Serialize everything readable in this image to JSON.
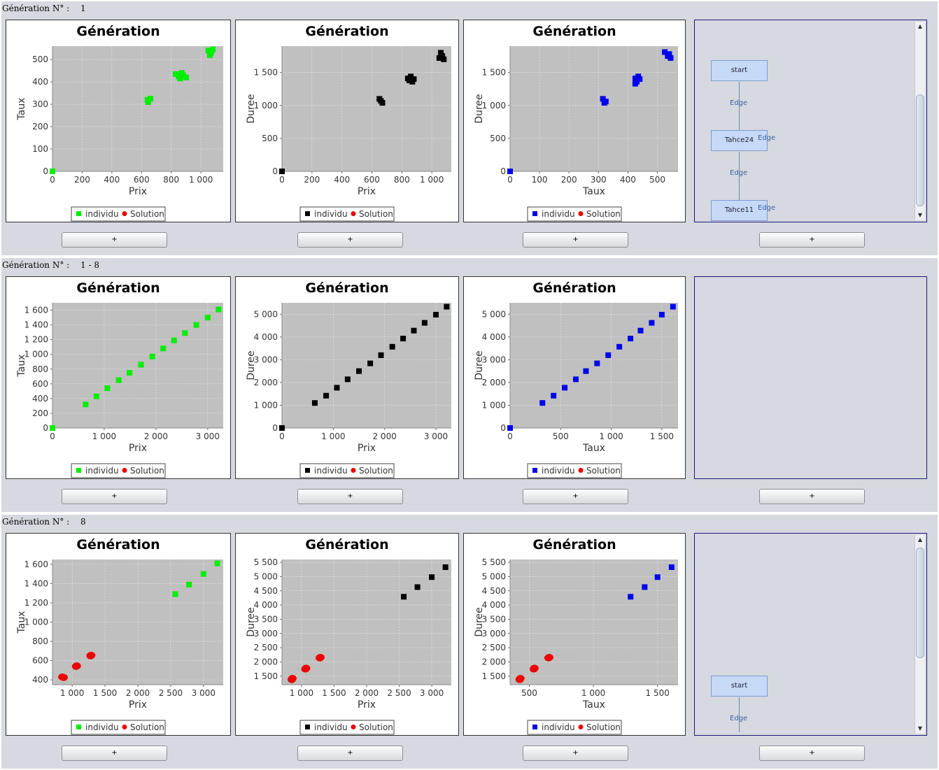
{
  "rows": [
    {
      "label": "Génération N° :",
      "value": "1",
      "charts": [
        {
          "title": "Génération",
          "xlabel": "Prix",
          "ylabel": "Taux",
          "color": "#00ee00",
          "xticks": [
            "0",
            "200",
            "400",
            "600",
            "800",
            "1 000"
          ],
          "yticks": [
            "0",
            "100",
            "200",
            "300",
            "400",
            "500"
          ],
          "legend": [
            "individu",
            "Solution"
          ]
        },
        {
          "title": "Génération",
          "xlabel": "Prix",
          "ylabel": "Duree",
          "color": "#000000",
          "xticks": [
            "0",
            "200",
            "400",
            "600",
            "800",
            "1 000"
          ],
          "yticks": [
            "0",
            "500",
            "1 000",
            "1 500"
          ],
          "legend": [
            "individu",
            "Solution"
          ]
        },
        {
          "title": "Génération",
          "xlabel": "Taux",
          "ylabel": "Duree",
          "color": "#0000ee",
          "xticks": [
            "0",
            "100",
            "200",
            "300",
            "400",
            "500"
          ],
          "yticks": [
            "0",
            "500",
            "1 000",
            "1 500"
          ],
          "legend": [
            "individu",
            "Solution"
          ]
        }
      ],
      "graph": {
        "nodes": [
          "start",
          "Tahce24",
          "Tahce11"
        ],
        "edges": [
          "Edge",
          "Edge",
          "Edge",
          "Edge"
        ]
      },
      "buttons": [
        "+",
        "+",
        "+",
        "+"
      ]
    },
    {
      "label": "Génération N° :",
      "value": "1 - 8",
      "charts": [
        {
          "title": "Génération",
          "xlabel": "Prix",
          "ylabel": "Taux",
          "color": "#00ee00",
          "xticks": [
            "0",
            "1 000",
            "2 000",
            "3 000"
          ],
          "yticks": [
            "0",
            "200",
            "400",
            "600",
            "800",
            "1 000",
            "1 200",
            "1 400",
            "1 600"
          ],
          "legend": [
            "individu",
            "Solution"
          ]
        },
        {
          "title": "Génération",
          "xlabel": "Prix",
          "ylabel": "Duree",
          "color": "#000000",
          "xticks": [
            "0",
            "1 000",
            "2 000",
            "3 000"
          ],
          "yticks": [
            "0",
            "1 000",
            "2 000",
            "3 000",
            "4 000",
            "5 000"
          ],
          "legend": [
            "individu",
            "Solution"
          ]
        },
        {
          "title": "Génération",
          "xlabel": "Taux",
          "ylabel": "Duree",
          "color": "#0000ee",
          "xticks": [
            "0",
            "500",
            "1 000",
            "1 500"
          ],
          "yticks": [
            "0",
            "1 000",
            "2 000",
            "3 000",
            "4 000",
            "5 000"
          ],
          "legend": [
            "individu",
            "Solution"
          ]
        }
      ],
      "buttons": [
        "+",
        "+",
        "+",
        "+"
      ]
    },
    {
      "label": "Génération N° :",
      "value": "8",
      "charts": [
        {
          "title": "Génération",
          "xlabel": "Prix",
          "ylabel": "Taux",
          "color": "#00ee00",
          "xticks": [
            "1 000",
            "1 500",
            "2 000",
            "2 500",
            "3 000"
          ],
          "yticks": [
            "400",
            "600",
            "800",
            "1 000",
            "1 200",
            "1 400",
            "1 600"
          ],
          "legend": [
            "individu",
            "Solution"
          ]
        },
        {
          "title": "Génération",
          "xlabel": "Prix",
          "ylabel": "Duree",
          "color": "#000000",
          "xticks": [
            "1 000",
            "1 500",
            "2 000",
            "2 500",
            "3 000"
          ],
          "yticks": [
            "1 500",
            "2 000",
            "2 500",
            "3 000",
            "3 500",
            "4 000",
            "4 500",
            "5 000",
            "5 500"
          ],
          "legend": [
            "individu",
            "Solution"
          ]
        },
        {
          "title": "Génération",
          "xlabel": "Taux",
          "ylabel": "Duree",
          "color": "#0000ee",
          "xticks": [
            "500",
            "1 000",
            "1 500"
          ],
          "yticks": [
            "1 500",
            "2 000",
            "2 500",
            "3 000",
            "3 500",
            "4 000",
            "4 500",
            "5 000",
            "5 500"
          ],
          "legend": [
            "individu",
            "Solution"
          ]
        }
      ],
      "graph": {
        "nodes": [
          "start"
        ],
        "edges": [
          "Edge"
        ]
      },
      "buttons": [
        "+",
        "+",
        "+",
        "+"
      ]
    }
  ],
  "chart_data": [
    {
      "type": "scatter",
      "row": 1,
      "title": "Génération",
      "xlabel": "Prix",
      "ylabel": "Taux",
      "xlim": [
        0,
        1150
      ],
      "ylim": [
        0,
        560
      ],
      "series": [
        {
          "name": "individu",
          "color": "#00ee00",
          "points": [
            [
              0,
              0
            ],
            [
              640,
              320
            ],
            [
              660,
              325
            ],
            [
              645,
              310
            ],
            [
              830,
              435
            ],
            [
              850,
              425
            ],
            [
              870,
              440
            ],
            [
              880,
              430
            ],
            [
              900,
              420
            ],
            [
              860,
              415
            ],
            [
              1050,
              540
            ],
            [
              1060,
              520
            ],
            [
              1070,
              535
            ],
            [
              1080,
              545
            ],
            [
              1065,
              530
            ]
          ]
        },
        {
          "name": "Solution",
          "color": "#ee0000",
          "points": []
        }
      ]
    },
    {
      "type": "scatter",
      "row": 1,
      "title": "Génération",
      "xlabel": "Prix",
      "ylabel": "Duree",
      "xlim": [
        0,
        1130
      ],
      "ylim": [
        0,
        1900
      ],
      "series": [
        {
          "name": "individu",
          "color": "#000000",
          "points": [
            [
              0,
              0
            ],
            [
              650,
              1100
            ],
            [
              660,
              1070
            ],
            [
              670,
              1040
            ],
            [
              840,
              1410
            ],
            [
              860,
              1440
            ],
            [
              880,
              1400
            ],
            [
              870,
              1360
            ],
            [
              850,
              1380
            ],
            [
              1060,
              1800
            ],
            [
              1050,
              1720
            ],
            [
              1080,
              1700
            ],
            [
              1070,
              1750
            ]
          ]
        },
        {
          "name": "Solution",
          "color": "#ee0000",
          "points": []
        }
      ]
    },
    {
      "type": "scatter",
      "row": 1,
      "title": "Génération",
      "xlabel": "Taux",
      "ylabel": "Duree",
      "xlim": [
        0,
        570
      ],
      "ylim": [
        0,
        1900
      ],
      "series": [
        {
          "name": "individu",
          "color": "#0000ee",
          "points": [
            [
              0,
              0
            ],
            [
              315,
              1100
            ],
            [
              325,
              1060
            ],
            [
              320,
              1040
            ],
            [
              425,
              1410
            ],
            [
              435,
              1440
            ],
            [
              440,
              1400
            ],
            [
              430,
              1360
            ],
            [
              425,
              1330
            ],
            [
              525,
              1810
            ],
            [
              540,
              1780
            ],
            [
              545,
              1720
            ],
            [
              535,
              1750
            ]
          ]
        },
        {
          "name": "Solution",
          "color": "#ee0000",
          "points": []
        }
      ]
    },
    {
      "type": "scatter",
      "row": 2,
      "title": "Génération",
      "xlabel": "Prix",
      "ylabel": "Taux",
      "xlim": [
        0,
        3300
      ],
      "ylim": [
        0,
        1700
      ],
      "series": [
        {
          "name": "individu",
          "color": "#00ee00",
          "points": [
            [
              0,
              0
            ],
            [
              640,
              320
            ],
            [
              850,
              430
            ],
            [
              1060,
              540
            ],
            [
              1280,
              650
            ],
            [
              1490,
              750
            ],
            [
              1710,
              860
            ],
            [
              1930,
              970
            ],
            [
              2140,
              1080
            ],
            [
              2350,
              1190
            ],
            [
              2560,
              1290
            ],
            [
              2780,
              1400
            ],
            [
              3000,
              1500
            ],
            [
              3210,
              1610
            ]
          ]
        },
        {
          "name": "Solution",
          "color": "#ee0000",
          "points": []
        }
      ]
    },
    {
      "type": "scatter",
      "row": 2,
      "title": "Génération",
      "xlabel": "Prix",
      "ylabel": "Duree",
      "xlim": [
        0,
        3300
      ],
      "ylim": [
        0,
        5500
      ],
      "series": [
        {
          "name": "individu",
          "color": "#000000",
          "points": [
            [
              0,
              0
            ],
            [
              640,
              1100
            ],
            [
              860,
              1420
            ],
            [
              1070,
              1770
            ],
            [
              1280,
              2140
            ],
            [
              1500,
              2500
            ],
            [
              1720,
              2840
            ],
            [
              1930,
              3200
            ],
            [
              2150,
              3570
            ],
            [
              2360,
              3930
            ],
            [
              2570,
              4280
            ],
            [
              2780,
              4620
            ],
            [
              3000,
              4980
            ],
            [
              3210,
              5330
            ]
          ]
        },
        {
          "name": "Solution",
          "color": "#ee0000",
          "points": []
        }
      ]
    },
    {
      "type": "scatter",
      "row": 2,
      "title": "Génération",
      "xlabel": "Taux",
      "ylabel": "Duree",
      "xlim": [
        0,
        1660
      ],
      "ylim": [
        0,
        5500
      ],
      "series": [
        {
          "name": "individu",
          "color": "#0000ee",
          "points": [
            [
              0,
              0
            ],
            [
              320,
              1100
            ],
            [
              430,
              1420
            ],
            [
              540,
              1770
            ],
            [
              650,
              2140
            ],
            [
              750,
              2500
            ],
            [
              860,
              2840
            ],
            [
              970,
              3200
            ],
            [
              1080,
              3570
            ],
            [
              1190,
              3930
            ],
            [
              1290,
              4280
            ],
            [
              1400,
              4620
            ],
            [
              1500,
              4980
            ],
            [
              1610,
              5330
            ]
          ]
        },
        {
          "name": "Solution",
          "color": "#ee0000",
          "points": []
        }
      ]
    },
    {
      "type": "scatter",
      "row": 3,
      "title": "Génération",
      "xlabel": "Prix",
      "ylabel": "Taux",
      "xlim": [
        700,
        3300
      ],
      "ylim": [
        350,
        1650
      ],
      "series": [
        {
          "name": "individu",
          "color": "#00ee00",
          "points": [
            [
              2570,
              1290
            ],
            [
              2780,
              1390
            ],
            [
              3000,
              1500
            ],
            [
              3210,
              1610
            ]
          ]
        },
        {
          "name": "Solution",
          "color": "#ee0000",
          "points": [
            [
              850,
              430
            ],
            [
              870,
              425
            ],
            [
              1060,
              540
            ],
            [
              1070,
              545
            ],
            [
              1280,
              650
            ],
            [
              1290,
              655
            ]
          ]
        }
      ]
    },
    {
      "type": "scatter",
      "row": 3,
      "title": "Génération",
      "xlabel": "Prix",
      "ylabel": "Duree",
      "xlim": [
        700,
        3300
      ],
      "ylim": [
        1200,
        5600
      ],
      "series": [
        {
          "name": "individu",
          "color": "#000000",
          "points": [
            [
              2570,
              4290
            ],
            [
              2780,
              4630
            ],
            [
              3000,
              4980
            ],
            [
              3210,
              5330
            ]
          ]
        },
        {
          "name": "Solution",
          "color": "#ee0000",
          "points": [
            [
              860,
              1420
            ],
            [
              850,
              1380
            ],
            [
              1070,
              1780
            ],
            [
              1060,
              1750
            ],
            [
              1280,
              2140
            ],
            [
              1290,
              2160
            ]
          ]
        }
      ]
    },
    {
      "type": "scatter",
      "row": 3,
      "title": "Génération",
      "xlabel": "Taux",
      "ylabel": "Duree",
      "xlim": [
        350,
        1660
      ],
      "ylim": [
        1200,
        5600
      ],
      "series": [
        {
          "name": "individu",
          "color": "#0000ee",
          "points": [
            [
              1290,
              4290
            ],
            [
              1400,
              4630
            ],
            [
              1500,
              4980
            ],
            [
              1610,
              5330
            ]
          ]
        },
        {
          "name": "Solution",
          "color": "#ee0000",
          "points": [
            [
              430,
              1420
            ],
            [
              425,
              1380
            ],
            [
              540,
              1780
            ],
            [
              535,
              1750
            ],
            [
              650,
              2140
            ],
            [
              655,
              2160
            ]
          ]
        }
      ]
    }
  ]
}
